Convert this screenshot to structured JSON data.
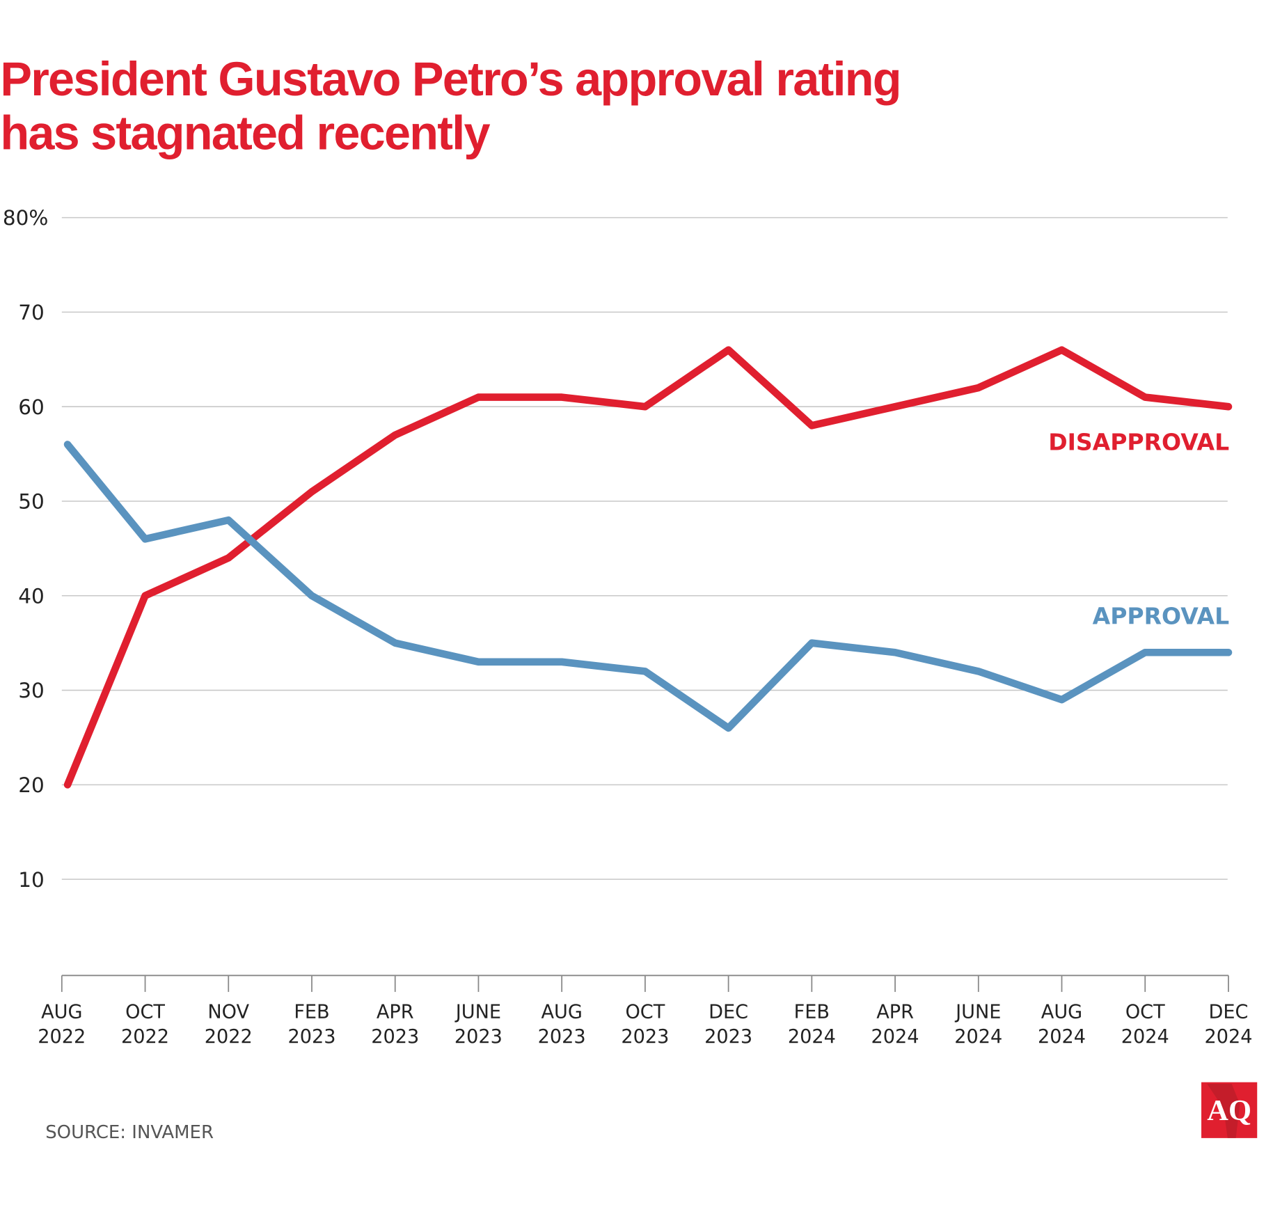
{
  "chart_data": {
    "type": "line",
    "title": [
      "President Gustavo Petro’s approval rating",
      "has stagnated recently"
    ],
    "categories": [
      [
        "AUG",
        "2022"
      ],
      [
        "OCT",
        "2022"
      ],
      [
        "NOV",
        "2022"
      ],
      [
        "FEB",
        "2023"
      ],
      [
        "APR",
        "2023"
      ],
      [
        "JUNE",
        "2023"
      ],
      [
        "AUG",
        "2023"
      ],
      [
        "OCT",
        "2023"
      ],
      [
        "DEC",
        "2023"
      ],
      [
        "FEB",
        "2024"
      ],
      [
        "APR",
        "2024"
      ],
      [
        "JUNE",
        "2024"
      ],
      [
        "AUG",
        "2024"
      ],
      [
        "OCT",
        "2024"
      ],
      [
        "DEC",
        "2024"
      ]
    ],
    "series": [
      {
        "name": "DISAPPROVAL",
        "color": "#e01f2f",
        "values": [
          20,
          40,
          44,
          51,
          57,
          61,
          61,
          60,
          66,
          58,
          60,
          62,
          66,
          61,
          60
        ]
      },
      {
        "name": "APPROVAL",
        "color": "#5a93bf",
        "values": [
          56,
          46,
          48,
          40,
          35,
          33,
          33,
          32,
          26,
          35,
          34,
          32,
          29,
          34,
          34
        ]
      }
    ],
    "yticks": [
      "80%",
      "70",
      "60",
      "50",
      "40",
      "30",
      "20",
      "10"
    ],
    "ytick_values": [
      80,
      70,
      60,
      50,
      40,
      30,
      20,
      10
    ],
    "ylim": [
      0,
      80
    ],
    "grid": true,
    "legend": "inline labels at right end of lines",
    "source": "SOURCE: INVAMER",
    "logo": "AQ"
  }
}
